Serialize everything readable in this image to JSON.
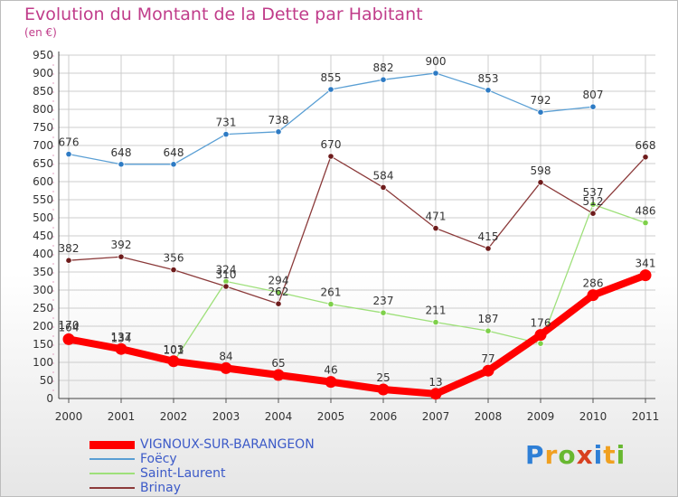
{
  "page": {
    "title": "Evolution du Montant de la Dette par Habitant",
    "subtitle": "(en €)"
  },
  "logo": {
    "text": "Proxiti"
  },
  "chart_data": {
    "type": "line",
    "title": "Evolution du Montant de la Dette par Habitant",
    "subtitle": "(en €)",
    "xlabel": "",
    "ylabel": "",
    "x": [
      "2000",
      "2001",
      "2002",
      "2003",
      "2004",
      "2005",
      "2006",
      "2007",
      "2008",
      "2009",
      "2010",
      "2011"
    ],
    "ylim": [
      0,
      950
    ],
    "yticks": [
      0,
      50,
      100,
      150,
      200,
      250,
      300,
      350,
      400,
      450,
      500,
      550,
      600,
      650,
      700,
      750,
      800,
      850,
      900,
      950
    ],
    "grid": true,
    "legend": "bottom-left",
    "series": [
      {
        "name": "Foëcy",
        "color": "#5a9fd4",
        "marker": "#2e7bc4",
        "values": [
          676,
          648,
          648,
          731,
          738,
          855,
          882,
          900,
          853,
          792,
          807,
          null
        ]
      },
      {
        "name": "Saint-Laurent",
        "color": "#9ee07a",
        "marker": "#7ed04a",
        "values": [
          170,
          134,
          101,
          324,
          294,
          261,
          237,
          211,
          187,
          152,
          537,
          486
        ]
      },
      {
        "name": "Brinay",
        "color": "#8b3a3a",
        "marker": "#6e1c1c",
        "values": [
          382,
          392,
          356,
          310,
          262,
          670,
          584,
          471,
          415,
          598,
          512,
          668
        ]
      },
      {
        "name": "VIGNOUX-SUR-BARANGEON",
        "color": "#ff0000",
        "marker": "#ff0000",
        "values": [
          164,
          137,
          103,
          84,
          65,
          46,
          25,
          13,
          77,
          176,
          286,
          341
        ]
      }
    ],
    "data_labels": [
      [
        "676",
        "648",
        "648",
        "731",
        "738",
        "855",
        "882",
        "900",
        "853",
        "792",
        "807",
        ""
      ],
      [
        "170",
        "134",
        "101",
        "324",
        "294",
        "261",
        "237",
        "211",
        "187",
        "",
        "537",
        "486"
      ],
      [
        "382",
        "392",
        "356",
        "310",
        "262",
        "670",
        "584",
        "471",
        "415",
        "598",
        "512",
        "668"
      ],
      [
        "164",
        "137",
        "103",
        "84",
        "65",
        "46",
        "25",
        "13",
        "77",
        "176",
        "286",
        "341"
      ]
    ]
  }
}
